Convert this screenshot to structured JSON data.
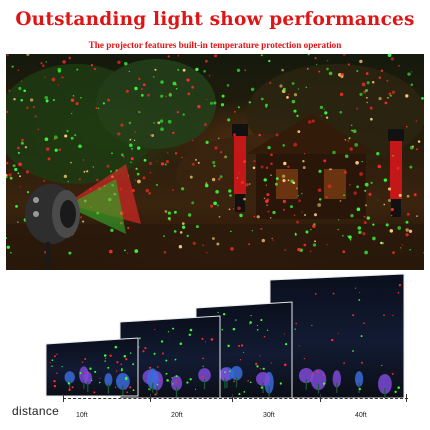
{
  "banner": {
    "title": "Outstanding light show performances",
    "subtitle": "The projector features built-in temperature protection operation",
    "title_color": "#e01414"
  },
  "scene": {
    "palette": {
      "red": "#ff2a2a",
      "green": "#37ff3a",
      "warm": "#ffd27a"
    }
  },
  "distance": {
    "label": "distance",
    "ticks": [
      "10ft",
      "20ft",
      "30ft",
      "40ft"
    ]
  }
}
